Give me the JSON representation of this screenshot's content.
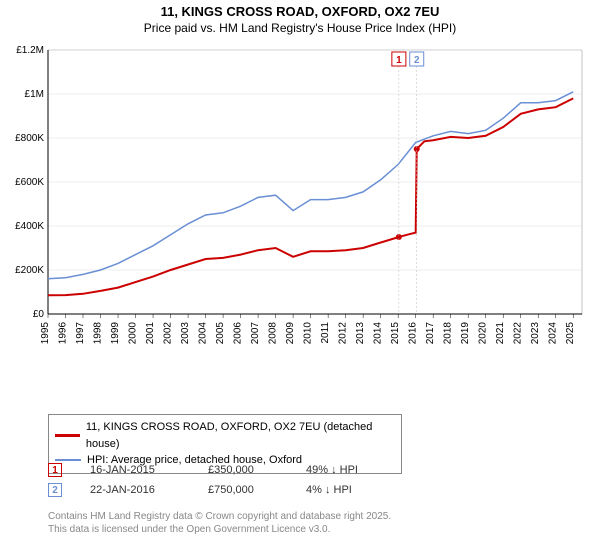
{
  "title_line1": "11, KINGS CROSS ROAD, OXFORD, OX2 7EU",
  "title_line2": "Price paid vs. HM Land Registry's House Price Index (HPI)",
  "chart": {
    "type": "line",
    "background_color": "#ffffff",
    "plot_border_color": "#888888",
    "grid_color": "#dddddd",
    "axis_color": "#000000",
    "tick_font_size": 10,
    "x_years": [
      1995,
      1996,
      1997,
      1998,
      1999,
      2000,
      2001,
      2002,
      2003,
      2004,
      2005,
      2006,
      2007,
      2008,
      2009,
      2010,
      2011,
      2012,
      2013,
      2014,
      2015,
      2016,
      2017,
      2018,
      2019,
      2020,
      2021,
      2022,
      2023,
      2024,
      2025
    ],
    "x_domain": [
      1995,
      2025.5
    ],
    "y_ticks": [
      0,
      200000,
      400000,
      600000,
      800000,
      1000000,
      1200000
    ],
    "y_labels": [
      "£0",
      "£200K",
      "£400K",
      "£600K",
      "£800K",
      "£1M",
      "£1.2M"
    ],
    "y_domain": [
      0,
      1200000
    ],
    "series": [
      {
        "name": "price_paid",
        "label": "11, KINGS CROSS ROAD, OXFORD, OX2 7EU (detached house)",
        "color": "#cc0000",
        "width": 2,
        "points": [
          [
            1995,
            85000
          ],
          [
            1996,
            86000
          ],
          [
            1997,
            92000
          ],
          [
            1998,
            105000
          ],
          [
            1999,
            120000
          ],
          [
            2000,
            145000
          ],
          [
            2001,
            170000
          ],
          [
            2002,
            200000
          ],
          [
            2003,
            225000
          ],
          [
            2004,
            250000
          ],
          [
            2005,
            255000
          ],
          [
            2006,
            270000
          ],
          [
            2007,
            290000
          ],
          [
            2008,
            300000
          ],
          [
            2009,
            260000
          ],
          [
            2010,
            285000
          ],
          [
            2011,
            285000
          ],
          [
            2012,
            290000
          ],
          [
            2013,
            300000
          ],
          [
            2014,
            325000
          ],
          [
            2015.04,
            350000
          ],
          [
            2015.5,
            360000
          ],
          [
            2016.0,
            370000
          ],
          [
            2016.06,
            750000
          ],
          [
            2016.5,
            785000
          ],
          [
            2017,
            790000
          ],
          [
            2018,
            805000
          ],
          [
            2019,
            800000
          ],
          [
            2020,
            810000
          ],
          [
            2021,
            850000
          ],
          [
            2022,
            910000
          ],
          [
            2023,
            930000
          ],
          [
            2024,
            940000
          ],
          [
            2025,
            980000
          ]
        ],
        "sale_markers": [
          {
            "x": 2015.04,
            "y": 350000
          },
          {
            "x": 2016.06,
            "y": 750000
          }
        ]
      },
      {
        "name": "hpi",
        "label": "HPI: Average price, detached house, Oxford",
        "color": "#6a8fd4",
        "width": 1.5,
        "points": [
          [
            1995,
            160000
          ],
          [
            1996,
            165000
          ],
          [
            1997,
            180000
          ],
          [
            1998,
            200000
          ],
          [
            1999,
            230000
          ],
          [
            2000,
            270000
          ],
          [
            2001,
            310000
          ],
          [
            2002,
            360000
          ],
          [
            2003,
            410000
          ],
          [
            2004,
            450000
          ],
          [
            2005,
            460000
          ],
          [
            2006,
            490000
          ],
          [
            2007,
            530000
          ],
          [
            2008,
            540000
          ],
          [
            2009,
            470000
          ],
          [
            2010,
            520000
          ],
          [
            2011,
            520000
          ],
          [
            2012,
            530000
          ],
          [
            2013,
            555000
          ],
          [
            2014,
            610000
          ],
          [
            2015,
            680000
          ],
          [
            2016,
            780000
          ],
          [
            2017,
            810000
          ],
          [
            2018,
            830000
          ],
          [
            2019,
            820000
          ],
          [
            2020,
            835000
          ],
          [
            2021,
            890000
          ],
          [
            2022,
            960000
          ],
          [
            2023,
            960000
          ],
          [
            2024,
            970000
          ],
          [
            2025,
            1010000
          ]
        ]
      }
    ],
    "annotations": [
      {
        "x": 2015.04,
        "label": "1",
        "color": "#cc0000"
      },
      {
        "x": 2016.06,
        "label": "2",
        "color": "#6a8fd4"
      }
    ]
  },
  "legend": {
    "series1_color": "#cc0000",
    "series1_label": "11, KINGS CROSS ROAD, OXFORD, OX2 7EU (detached house)",
    "series2_color": "#6a8fd4",
    "series2_label": "HPI: Average price, detached house, Oxford"
  },
  "markers_table": [
    {
      "num": "1",
      "color": "#cc0000",
      "date": "16-JAN-2015",
      "price": "£350,000",
      "hpi": "49% ↓ HPI"
    },
    {
      "num": "2",
      "color": "#6a8fd4",
      "date": "22-JAN-2016",
      "price": "£750,000",
      "hpi": "4% ↓ HPI"
    }
  ],
  "footer_line1": "Contains HM Land Registry data © Crown copyright and database right 2025.",
  "footer_line2": "This data is licensed under the Open Government Licence v3.0."
}
